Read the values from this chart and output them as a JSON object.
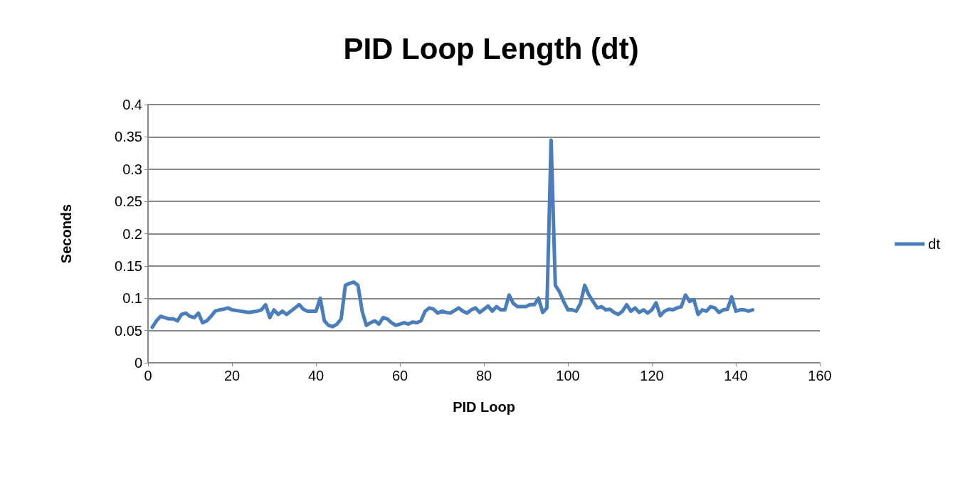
{
  "chart_data": {
    "type": "line",
    "title": "PID Loop Length (dt)",
    "xlabel": "PID Loop",
    "ylabel": "Seconds",
    "xlim": [
      0,
      160
    ],
    "xticks": [
      0,
      20,
      40,
      60,
      80,
      100,
      120,
      140,
      160
    ],
    "ylim": [
      0,
      0.4
    ],
    "yticks": [
      0,
      0.05,
      0.1,
      0.15,
      0.2,
      0.25,
      0.3,
      0.35,
      0.4
    ],
    "grid": "y",
    "legend": "right",
    "marker": "none",
    "line_style": "solid",
    "series": [
      {
        "name": "dt",
        "color": "#4a7ebb",
        "x": [
          1,
          2,
          3,
          4,
          5,
          6,
          7,
          8,
          9,
          10,
          11,
          12,
          13,
          14,
          15,
          16,
          17,
          18,
          19,
          20,
          22,
          24,
          26,
          27,
          28,
          29,
          30,
          31,
          32,
          33,
          35,
          36,
          37,
          38,
          40,
          41,
          42,
          43,
          44,
          45,
          46,
          47,
          48,
          49,
          50,
          51,
          52,
          53,
          54,
          55,
          56,
          57,
          58,
          59,
          60,
          61,
          62,
          63,
          64,
          65,
          66,
          67,
          68,
          69,
          70,
          71,
          72,
          74,
          75,
          76,
          77,
          78,
          79,
          80,
          81,
          82,
          83,
          84,
          85,
          86,
          87,
          88,
          89,
          90,
          91,
          92,
          93,
          94,
          95,
          96,
          97,
          98,
          99,
          100,
          101,
          102,
          103,
          104,
          105,
          106,
          107,
          108,
          109,
          110,
          111,
          112,
          113,
          114,
          115,
          116,
          117,
          118,
          119,
          120,
          121,
          122,
          123,
          124,
          125,
          126,
          127,
          128,
          129,
          130,
          131,
          132,
          133,
          134,
          135,
          136,
          137,
          138,
          139,
          140,
          141,
          142,
          143,
          144
        ],
        "values": [
          0.055,
          0.065,
          0.072,
          0.07,
          0.068,
          0.068,
          0.065,
          0.075,
          0.077,
          0.072,
          0.07,
          0.077,
          0.062,
          0.065,
          0.072,
          0.08,
          0.082,
          0.083,
          0.085,
          0.082,
          0.08,
          0.078,
          0.08,
          0.082,
          0.09,
          0.07,
          0.082,
          0.075,
          0.08,
          0.075,
          0.085,
          0.09,
          0.083,
          0.08,
          0.08,
          0.1,
          0.065,
          0.058,
          0.056,
          0.06,
          0.068,
          0.12,
          0.123,
          0.125,
          0.12,
          0.08,
          0.058,
          0.062,
          0.065,
          0.06,
          0.07,
          0.068,
          0.062,
          0.058,
          0.06,
          0.062,
          0.06,
          0.063,
          0.062,
          0.065,
          0.08,
          0.085,
          0.083,
          0.077,
          0.08,
          0.078,
          0.077,
          0.085,
          0.08,
          0.077,
          0.082,
          0.085,
          0.078,
          0.083,
          0.088,
          0.08,
          0.087,
          0.082,
          0.082,
          0.105,
          0.092,
          0.087,
          0.087,
          0.087,
          0.09,
          0.09,
          0.1,
          0.078,
          0.085,
          0.345,
          0.12,
          0.11,
          0.095,
          0.082,
          0.082,
          0.08,
          0.092,
          0.12,
          0.105,
          0.095,
          0.085,
          0.087,
          0.082,
          0.083,
          0.078,
          0.075,
          0.08,
          0.09,
          0.08,
          0.085,
          0.078,
          0.082,
          0.077,
          0.082,
          0.093,
          0.073,
          0.08,
          0.083,
          0.082,
          0.085,
          0.087,
          0.105,
          0.095,
          0.098,
          0.075,
          0.082,
          0.08,
          0.087,
          0.085,
          0.078,
          0.082,
          0.083,
          0.102,
          0.08,
          0.082,
          0.082,
          0.08,
          0.082
        ]
      }
    ]
  }
}
